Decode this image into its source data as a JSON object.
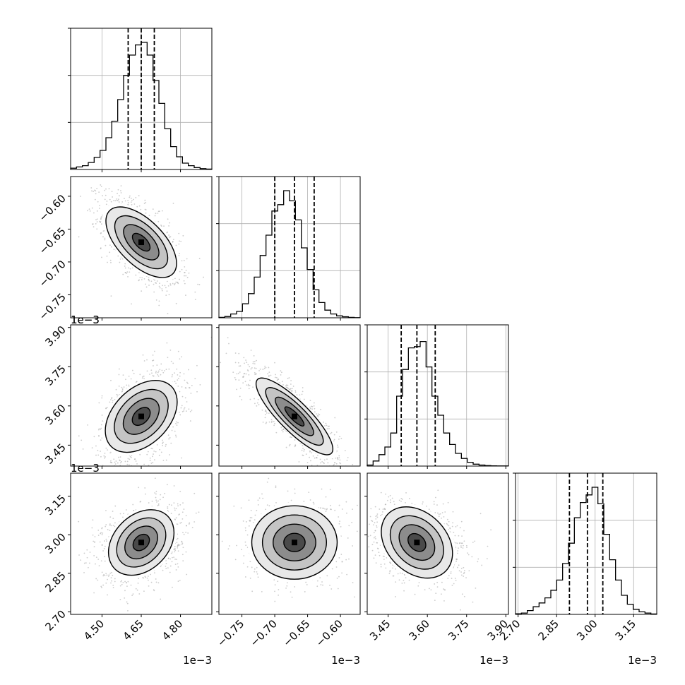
{
  "chart_data": {
    "type": "corner",
    "parameters": [
      {
        "hist_ylim": [
          0,
          3000
        ],
        "median": 0.00465,
        "quantiles": [
          0.0046,
          0.00465,
          0.0047
        ],
        "range": [
          0.00438,
          0.00492
        ],
        "ticks": [
          0.0045,
          0.00465,
          0.0048
        ],
        "tick_labels": [
          "4.50",
          "4.65",
          "4.80"
        ],
        "offset_label": "1e−3",
        "std": 5.5e-05,
        "hist": [
          0.01,
          0.02,
          0.03,
          0.055,
          0.095,
          0.15,
          0.25,
          0.38,
          0.55,
          0.74,
          0.9,
          0.98,
          1.0,
          0.9,
          0.7,
          0.52,
          0.32,
          0.18,
          0.1,
          0.05,
          0.03,
          0.015,
          0.007,
          0.003
        ]
      },
      {
        "hist_ylim": [
          0,
          3000
        ],
        "median": -0.00067,
        "quantiles": [
          -0.0007,
          -0.00067,
          -0.00064
        ],
        "range": [
          -0.000785,
          -0.00057
        ],
        "ticks": [
          -0.00075,
          -0.0007,
          -0.00065,
          -0.0006
        ],
        "tick_labels": [
          "−0.75",
          "−0.70",
          "−0.65",
          "−0.60"
        ],
        "offset_label": "1e−3",
        "std": 2.5e-05,
        "hist": [
          0.003,
          0.01,
          0.03,
          0.05,
          0.11,
          0.19,
          0.32,
          0.49,
          0.65,
          0.84,
          0.89,
          1.0,
          0.92,
          0.77,
          0.55,
          0.38,
          0.22,
          0.12,
          0.06,
          0.03,
          0.015,
          0.008,
          0.003,
          0.001
        ]
      },
      {
        "hist_ylim": [
          0,
          3000
        ],
        "median": 0.00356,
        "quantiles": [
          0.0035,
          0.00356,
          0.00363
        ],
        "range": [
          0.00337,
          0.00391
        ],
        "ticks": [
          0.00345,
          0.0036,
          0.00375,
          0.0039
        ],
        "tick_labels": [
          "3.45",
          "3.60",
          "3.75",
          "3.90"
        ],
        "offset_label": "1e−3",
        "std": 6.5e-05,
        "hist": [
          0.008,
          0.04,
          0.09,
          0.15,
          0.26,
          0.55,
          0.76,
          0.93,
          0.94,
          0.98,
          0.78,
          0.55,
          0.4,
          0.26,
          0.17,
          0.1,
          0.06,
          0.03,
          0.015,
          0.008,
          0.004,
          0.002,
          0.001,
          0.001
        ]
      },
      {
        "hist_ylim": [
          0,
          3000
        ],
        "median": 0.00297,
        "quantiles": [
          0.0029,
          0.00297,
          0.00303
        ],
        "range": [
          0.00269,
          0.00324
        ],
        "ticks": [
          0.0027,
          0.00285,
          0.003,
          0.00315
        ],
        "tick_labels": [
          "2.70",
          "2.85",
          "3.00",
          "3.15"
        ],
        "offset_label": "1e−3",
        "std": 5.5e-05,
        "hist": [
          0.005,
          0.01,
          0.03,
          0.06,
          0.09,
          0.13,
          0.19,
          0.27,
          0.4,
          0.56,
          0.76,
          0.88,
          0.94,
          1.0,
          0.87,
          0.63,
          0.43,
          0.27,
          0.15,
          0.08,
          0.04,
          0.02,
          0.01,
          0.003
        ]
      }
    ],
    "correlations": [
      [
        0,
        1,
        -0.6
      ],
      [
        0,
        2,
        0.4
      ],
      [
        0,
        3,
        0.3
      ],
      [
        1,
        2,
        -0.85
      ],
      [
        1,
        3,
        0.0
      ],
      [
        2,
        3,
        -0.3
      ]
    ],
    "grid": true,
    "contour_levels": [
      0.5,
      1.0,
      1.5,
      2.0
    ],
    "scatter": true
  }
}
